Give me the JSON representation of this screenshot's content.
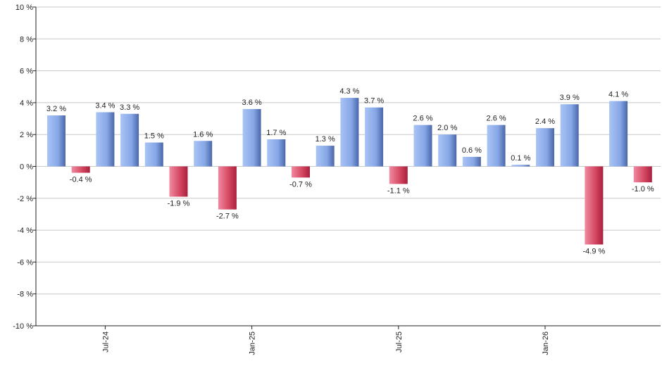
{
  "chart_data": {
    "type": "bar",
    "title": "",
    "xlabel": "",
    "ylabel": "",
    "ylim": [
      -10,
      10
    ],
    "yticks": [
      10,
      8,
      6,
      4,
      2,
      0,
      -2,
      -4,
      -6,
      -8,
      -10
    ],
    "ytick_labels": [
      "10 %",
      "8 %",
      "6 %",
      "4 %",
      "2 %",
      "0 %",
      "-2 %",
      "-4 %",
      "-6 %",
      "-8 %",
      "-10 %"
    ],
    "grid": true,
    "legend": "none",
    "values": [
      3.2,
      -0.4,
      3.4,
      3.3,
      1.5,
      -1.9,
      1.6,
      -2.7,
      3.6,
      1.7,
      -0.7,
      1.3,
      4.3,
      3.7,
      -1.1,
      2.6,
      2.0,
      0.6,
      2.6,
      0.1,
      2.4,
      3.9,
      -4.9,
      4.1,
      -1.0
    ],
    "value_labels": [
      "3.2 %",
      "-0.4 %",
      "3.4 %",
      "3.3 %",
      "1.5 %",
      "-1.9 %",
      "1.6 %",
      "-2.7 %",
      "3.6 %",
      "1.7 %",
      "-0.7 %",
      "1.3 %",
      "4.3 %",
      "3.7 %",
      "-1.1 %",
      "2.6 %",
      "2.0 %",
      "0.6 %",
      "2.6 %",
      "0.1 %",
      "2.4 %",
      "3.9 %",
      "-4.9 %",
      "4.1 %",
      "-1.0 %"
    ],
    "xtick_labels": [
      {
        "index": 2,
        "label": "Jul-24"
      },
      {
        "index": 8,
        "label": "Jan-25"
      },
      {
        "index": 14,
        "label": "Jul-25"
      },
      {
        "index": 20,
        "label": "Jan-26"
      }
    ],
    "colors": {
      "positive_light": "#a9c4f5",
      "positive_dark": "#4a67a8",
      "negative_light": "#f08aa0",
      "negative_dark": "#a8203e",
      "grid": "#c8c8c8",
      "axis": "#222222"
    }
  }
}
